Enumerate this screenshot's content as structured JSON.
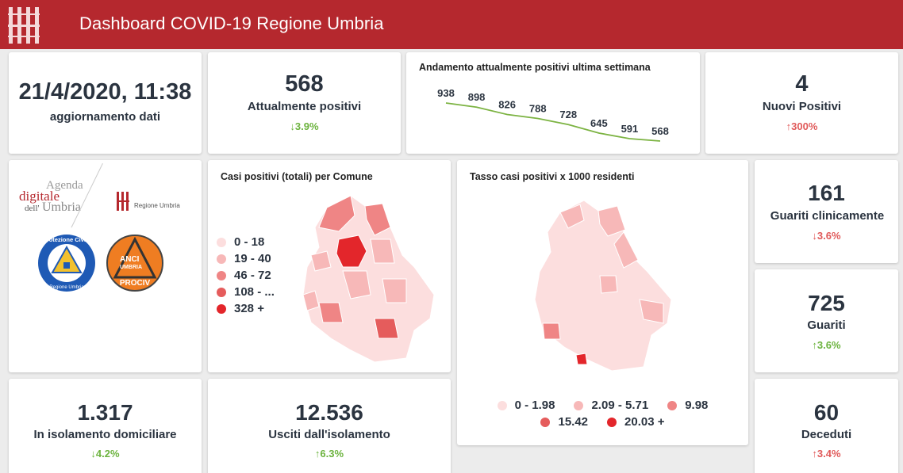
{
  "header": {
    "title": "Dashboard COVID-19 Regione Umbria"
  },
  "update": {
    "datetime": "21/4/2020, 11:38",
    "label": "aggiornamento dati"
  },
  "kpis": {
    "positivi": {
      "value": "568",
      "label": "Attualmente positivi",
      "delta": "3.9%",
      "direction": "down",
      "status": "good"
    },
    "nuovi": {
      "value": "4",
      "label": "Nuovi Positivi",
      "delta": "300%",
      "direction": "up",
      "status": "bad"
    },
    "guariti_clinicamente": {
      "value": "161",
      "label": "Guariti clinicamente",
      "delta": "3.6%",
      "direction": "down",
      "status": "bad"
    },
    "guariti": {
      "value": "725",
      "label": "Guariti",
      "delta": "3.6%",
      "direction": "up",
      "status": "good"
    },
    "isolamento": {
      "value": "1.317",
      "label": "In isolamento domiciliare",
      "delta": "4.2%",
      "direction": "down",
      "status": "good"
    },
    "usciti": {
      "value": "12.536",
      "label": "Usciti dall'isolamento",
      "delta": "6.3%",
      "direction": "up",
      "status": "good"
    },
    "deceduti": {
      "value": "60",
      "label": "Deceduti",
      "delta": "3.4%",
      "direction": "up",
      "status": "bad"
    }
  },
  "chart_data": {
    "type": "line",
    "title": "Andamento attualmente positivi ultima settimana",
    "values": [
      938,
      898,
      826,
      788,
      728,
      645,
      591,
      568
    ],
    "labels": [
      "938",
      "898",
      "826",
      "788",
      "728",
      "645",
      "591",
      "568"
    ],
    "color": "#7cb342",
    "grid": false
  },
  "logos": {
    "agenda": [
      "Agenda",
      "digitale",
      "dell'",
      "Umbria"
    ],
    "regione": "Regione Umbria",
    "protezione_top": "Protezione Civile",
    "protezione_bottom": "Regione Umbria",
    "anci_top": "ANCI",
    "anci_mid": "UMBRIA",
    "anci_bottom": "PROCIV"
  },
  "map_comuni": {
    "title": "Casi positivi (totali) per Comune",
    "legend": [
      {
        "label": "0 - 18",
        "color": "#fcdede"
      },
      {
        "label": "19 - 40",
        "color": "#f7b8b8"
      },
      {
        "label": "46 - 72",
        "color": "#ef8585"
      },
      {
        "label": "108 - ...",
        "color": "#e55c5c"
      },
      {
        "label": "328 +",
        "color": "#e3262b"
      }
    ]
  },
  "map_tasso": {
    "title": "Tasso casi positivi x 1000 residenti",
    "legend": [
      {
        "label": "0 - 1.98",
        "color": "#fcdede"
      },
      {
        "label": "2.09 - 5.71",
        "color": "#f7b8b8"
      },
      {
        "label": "9.98",
        "color": "#ef8585"
      },
      {
        "label": "15.42",
        "color": "#e55c5c"
      },
      {
        "label": "20.03 +",
        "color": "#e3262b"
      }
    ]
  },
  "colors": {
    "header": "#b5282e",
    "good": "#6cb33e",
    "bad": "#e05a5a",
    "text": "#2b3440"
  }
}
